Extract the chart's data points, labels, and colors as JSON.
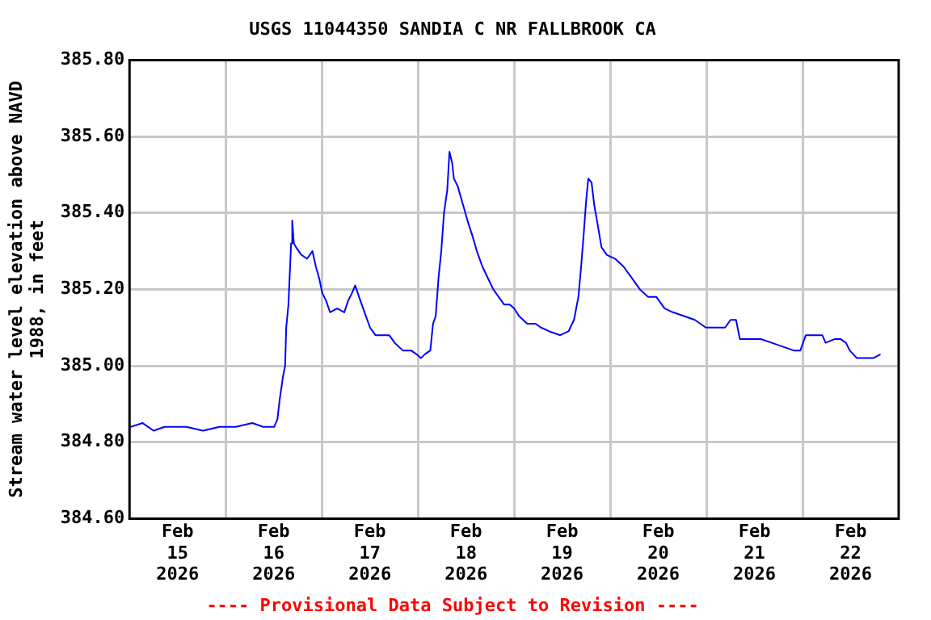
{
  "chart_data": {
    "type": "line",
    "title": "USGS 11044350 SANDIA C NR FALLBROOK CA",
    "ylabel": "Stream water level elevation above NAVD 1988, in feet",
    "annotations": [
      "---- Provisional Data Subject to Revision ----"
    ],
    "x": [
      "2026-02-15T00:16",
      "2026-02-15T03:17",
      "2026-02-15T06:01",
      "2026-02-15T08:45",
      "2026-02-15T11:29",
      "2026-02-15T14:13",
      "2026-02-15T18:19",
      "2026-02-15T22:26",
      "2026-02-16T02:32",
      "2026-02-16T06:38",
      "2026-02-16T09:22",
      "2026-02-16T12:06",
      "2026-02-16T12:55",
      "2026-02-16T13:28",
      "2026-02-16T14:17",
      "2026-02-16T14:50",
      "2026-02-16T15:07",
      "2026-02-16T15:40",
      "2026-02-16T16:20",
      "2026-02-16T16:37",
      "2026-02-16T17:01",
      "2026-02-16T17:34",
      "2026-02-16T18:56",
      "2026-02-16T20:19",
      "2026-02-16T21:40",
      "2026-02-16T22:30",
      "2026-02-16T23:19",
      "2026-02-17T00:08",
      "2026-02-17T01:05",
      "2026-02-17T02:03",
      "2026-02-17T03:50",
      "2026-02-17T05:37",
      "2026-02-17T06:34",
      "2026-02-17T07:31",
      "2026-02-17T08:20",
      "2026-02-17T09:18",
      "2026-02-17T10:40",
      "2026-02-17T12:02",
      "2026-02-17T13:24",
      "2026-02-17T16:49",
      "2026-02-17T18:11",
      "2026-02-17T20:14",
      "2026-02-17T22:17",
      "2026-02-17T23:40",
      "2026-02-18T00:45",
      "2026-02-18T01:43",
      "2026-02-18T03:05",
      "2026-02-18T03:46",
      "2026-02-18T04:26",
      "2026-02-18T05:08",
      "2026-02-18T05:49",
      "2026-02-18T06:30",
      "2026-02-18T07:19",
      "2026-02-18T07:52",
      "2026-02-18T08:33",
      "2026-02-18T08:58",
      "2026-02-18T09:55",
      "2026-02-18T11:17",
      "2026-02-18T12:39",
      "2026-02-18T13:36",
      "2026-02-18T14:42",
      "2026-02-18T16:04",
      "2026-02-18T17:26",
      "2026-02-18T18:48",
      "2026-02-18T20:10",
      "2026-02-18T21:32",
      "2026-02-18T22:54",
      "2026-02-19T00:00",
      "2026-02-19T01:14",
      "2026-02-19T03:17",
      "2026-02-19T05:21",
      "2026-02-19T06:43",
      "2026-02-19T08:47",
      "2026-02-19T11:31",
      "2026-02-19T13:35",
      "2026-02-19T14:57",
      "2026-02-19T16:03",
      "2026-02-19T16:44",
      "2026-02-19T17:25",
      "2026-02-19T17:58",
      "2026-02-19T18:31",
      "2026-02-19T19:20",
      "2026-02-19T20:01",
      "2026-02-19T20:51",
      "2026-02-19T21:49",
      "2026-02-19T23:11",
      "2026-02-20T01:14",
      "2026-02-20T03:17",
      "2026-02-20T05:21",
      "2026-02-20T07:24",
      "2026-02-20T09:28",
      "2026-02-20T11:31",
      "2026-02-20T13:35",
      "2026-02-20T15:38",
      "2026-02-20T18:23",
      "2026-02-20T21:07",
      "2026-02-20T23:52",
      "2026-02-21T02:36",
      "2026-02-21T04:40",
      "2026-02-21T06:02",
      "2026-02-21T07:24",
      "2026-02-21T08:22",
      "2026-02-21T10:50",
      "2026-02-21T13:35",
      "2026-02-21T16:19",
      "2026-02-21T19:04",
      "2026-02-21T21:48",
      "2026-02-21T23:27",
      "2026-02-22T00:49",
      "2026-02-22T03:17",
      "2026-02-22T04:56",
      "2026-02-22T05:46",
      "2026-02-22T08:05",
      "2026-02-22T09:28",
      "2026-02-22T10:50",
      "2026-02-22T11:47",
      "2026-02-22T13:34",
      "2026-02-22T15:38",
      "2026-02-22T17:41",
      "2026-02-22T19:28"
    ],
    "series": [
      {
        "color": "#0000ff",
        "values": [
          384.84,
          384.85,
          384.83,
          384.84,
          384.84,
          384.84,
          384.83,
          384.84,
          384.84,
          384.85,
          384.84,
          384.84,
          384.86,
          384.91,
          384.97,
          385.0,
          385.1,
          385.16,
          385.32,
          385.38,
          385.32,
          385.31,
          385.29,
          385.28,
          385.3,
          385.26,
          385.23,
          385.19,
          385.17,
          385.14,
          385.15,
          385.14,
          385.17,
          385.19,
          385.21,
          385.18,
          385.14,
          385.1,
          385.08,
          385.08,
          385.06,
          385.04,
          385.04,
          385.03,
          385.02,
          385.03,
          385.04,
          385.11,
          385.13,
          385.23,
          385.3,
          385.4,
          385.46,
          385.56,
          385.53,
          385.49,
          385.47,
          385.42,
          385.37,
          385.34,
          385.3,
          385.26,
          385.23,
          385.2,
          385.18,
          385.16,
          385.16,
          385.15,
          385.13,
          385.11,
          385.11,
          385.1,
          385.09,
          385.08,
          385.09,
          385.12,
          385.18,
          385.26,
          385.35,
          385.43,
          385.49,
          385.48,
          385.42,
          385.37,
          385.31,
          385.29,
          385.28,
          385.26,
          385.23,
          385.2,
          385.18,
          385.18,
          385.15,
          385.14,
          385.13,
          385.12,
          385.1,
          385.1,
          385.1,
          385.12,
          385.12,
          385.07,
          385.07,
          385.07,
          385.06,
          385.05,
          385.04,
          385.04,
          385.08,
          385.08,
          385.08,
          385.06,
          385.07,
          385.07,
          385.06,
          385.04,
          385.02,
          385.02,
          385.02,
          385.03
        ]
      }
    ],
    "xlim": [
      "2026-02-15",
      "2026-02-23"
    ],
    "xticks": [
      {
        "value": "2026-02-15T12:00",
        "label": "Feb 15 2026"
      },
      {
        "value": "2026-02-16",
        "label": null
      },
      {
        "value": "2026-02-16T12:00",
        "label": "Feb 16 2026"
      },
      {
        "value": "2026-02-17",
        "label": null
      },
      {
        "value": "2026-02-17T12:00",
        "label": "Feb 17 2026"
      },
      {
        "value": "2026-02-18",
        "label": null
      },
      {
        "value": "2026-02-18T12:00",
        "label": "Feb 18 2026"
      },
      {
        "value": "2026-02-19",
        "label": null
      },
      {
        "value": "2026-02-19T12:00",
        "label": "Feb 19 2026"
      },
      {
        "value": "2026-02-20",
        "label": null
      },
      {
        "value": "2026-02-20T12:00",
        "label": "Feb 20 2026"
      },
      {
        "value": "2026-02-21",
        "label": null
      },
      {
        "value": "2026-02-21T12:00",
        "label": "Feb 21 2026"
      },
      {
        "value": "2026-02-22",
        "label": null
      },
      {
        "value": "2026-02-22T12:00",
        "label": "Feb 22 2026"
      }
    ],
    "ylim": [
      384.6,
      385.8
    ],
    "yticks": [
      {
        "value": 384.6,
        "label": "384.60"
      },
      {
        "value": 384.8,
        "label": "384.80"
      },
      {
        "value": 385.0,
        "label": "385.00"
      },
      {
        "value": 385.2,
        "label": "385.20"
      },
      {
        "value": 385.4,
        "label": "385.40"
      },
      {
        "value": 385.6,
        "label": "385.60"
      },
      {
        "value": 385.8,
        "label": "385.80"
      }
    ],
    "grid": true,
    "legend": false,
    "marker": "none",
    "line_style": "solid"
  }
}
